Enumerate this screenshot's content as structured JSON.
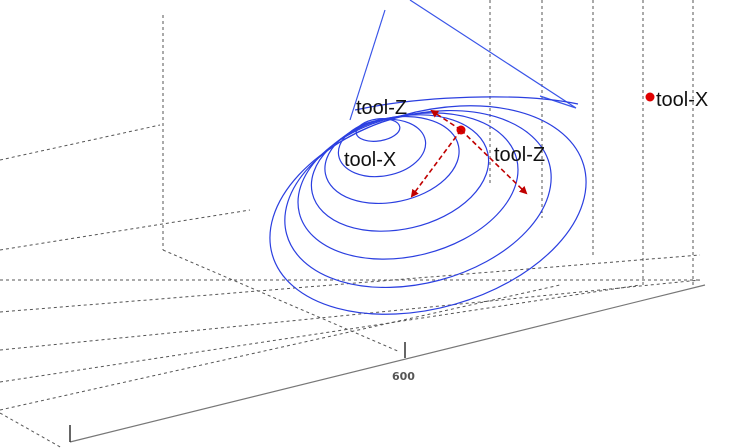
{
  "labels": {
    "tool_z_upper": "tool-Z",
    "tool_x_center": "tool-X",
    "tool_z_right": "tool-Z",
    "tool_x_legend": "tool-X"
  },
  "axis": {
    "tick_label_600": "600"
  },
  "colors": {
    "path": "#2b3fe0",
    "frame_arrows": "#c00000",
    "grid": "#555555"
  }
}
